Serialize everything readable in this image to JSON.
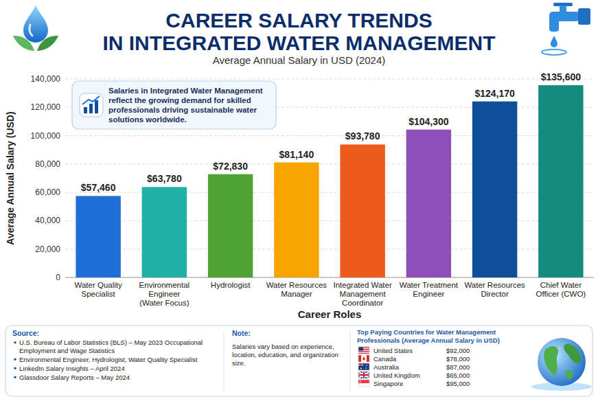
{
  "chart_data": {
    "type": "bar",
    "title": "CAREER SALARY TRENDS IN INTEGRATED WATER MANAGEMENT",
    "subtitle": "Average Annual Salary in USD (2024)",
    "x_label": "Career Roles",
    "y_label": "Average Annual Salary (USD)",
    "annotation": "Salaries in Integrated Water Management reflect the growing demand for skilled professionals driving sustainable water solutions worldwide.",
    "categories": [
      "Water Quality Specialist",
      "Environmental Engineer (Water Focus)",
      "Hydrologist",
      "Water Resources Manager",
      "Integrated Water Management Coordinator",
      "Water Treatment Engineer",
      "Water Resources Director",
      "Chief Water Officer (CWO)"
    ],
    "values": [
      57460,
      63780,
      72830,
      81140,
      93780,
      104300,
      124170,
      135600
    ],
    "value_labels": [
      "$57,460",
      "$63,780",
      "$72,830",
      "$81,140",
      "$93,780",
      "$104,300",
      "$124,170",
      "$135,600"
    ],
    "colors": [
      "#1f6fd6",
      "#1fb0a6",
      "#4fa334",
      "#f7a400",
      "#ee5a1c",
      "#8e4fb8",
      "#0f4f99",
      "#158b80"
    ],
    "ylim": [
      0,
      140000
    ],
    "yticks": [
      0,
      {
        "value": 20000,
        "label": "20,000"
      },
      {
        "value": 40000,
        "label": "40,000"
      },
      {
        "value": 60000,
        "label": "60,000"
      },
      {
        "value": 80000,
        "label": "80,000"
      },
      {
        "value": 100000,
        "label": "100,000"
      },
      {
        "value": 120000,
        "label": "120,000"
      },
      {
        "value": 140000,
        "label": "140,000"
      }
    ],
    "grid": true,
    "data_labels": true
  },
  "footer": {
    "source": {
      "heading": "Source:",
      "items": [
        "U.S. Bureau of Labor Statistics (BLS) – May 2023 Occupational Employment and Wage Statistics",
        "Environmental Engineer, Hydrologist, Water Quality Specialist",
        "LinkedIn Salary Insights – April 2024",
        "Glassdoor Salary Reports – May 2024"
      ]
    },
    "note": {
      "heading": "Note:",
      "text": "Salaries vary based on experience, location, education, and organization size."
    },
    "countries": {
      "title": "Top Paying Countries for Water Management Professionals (Average Annual Salary in USD)",
      "rows": [
        {
          "country": "United States",
          "salary": "$92,000"
        },
        {
          "country": "Canada",
          "salary": "$78,000"
        },
        {
          "country": "Australia",
          "salary": "$87,000"
        },
        {
          "country": "United Kingdom",
          "salary": "$65,000"
        },
        {
          "country": "Singapore",
          "salary": "$95,000"
        }
      ]
    }
  }
}
